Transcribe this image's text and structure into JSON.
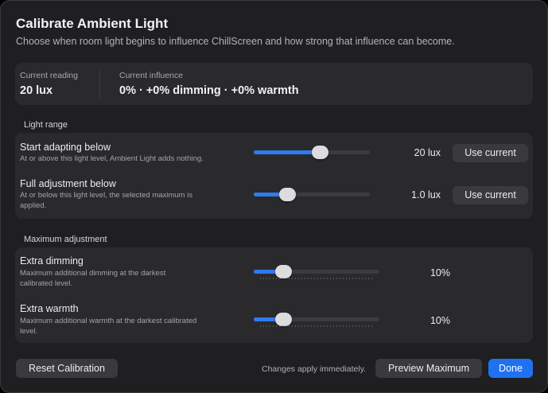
{
  "dialog": {
    "title": "Calibrate Ambient Light",
    "subtitle": "Choose when room light begins to influence ChillScreen and how strong that influence can become."
  },
  "reading": {
    "current_reading_label": "Current reading",
    "current_reading_value": "20 lux",
    "current_influence_label": "Current influence",
    "current_influence_value": "0% · +0% dimming · +0% warmth"
  },
  "light_range": {
    "section_label": "Light range",
    "rows": [
      {
        "title": "Start adapting below",
        "description": "At or above this light level, Ambient Light adds nothing.",
        "value": "20 lux",
        "slider_level": 0.57,
        "button": "Use current"
      },
      {
        "title": "Full adjustment below",
        "description": "At or below this light level, the selected maximum is applied.",
        "value": "1.0 lux",
        "slider_level": 0.29,
        "button": "Use current"
      }
    ]
  },
  "maximum_adjustment": {
    "section_label": "Maximum adjustment",
    "rows": [
      {
        "title": "Extra dimming",
        "description": "Maximum additional dimming at the darkest calibrated level.",
        "value": "10%",
        "slider_level": 0.24
      },
      {
        "title": "Extra warmth",
        "description": "Maximum additional warmth at the darkest calibrated level.",
        "value": "10%",
        "slider_level": 0.24
      }
    ]
  },
  "footer": {
    "reset_label": "Reset Calibration",
    "note": "Changes apply immediately.",
    "preview_label": "Preview Maximum",
    "done_label": "Done"
  },
  "colors": {
    "accent": "#2f7af0",
    "background": "#1f1f21",
    "panel": "#2a2a2d"
  }
}
